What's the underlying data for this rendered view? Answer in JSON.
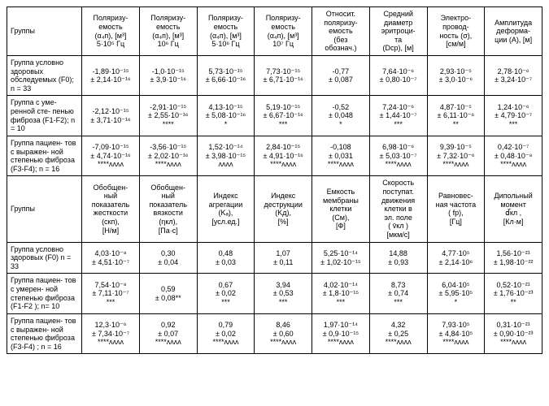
{
  "tableA": {
    "header_row_label": "Группы",
    "headers": [
      "Поляризу-\nемость\n(α₄п), [м³]\n5·10⁵ Гц",
      "Поляризу-\nемость\n(α₄п), [м³]\n10⁶ Гц",
      "Поляризу-\nемость\n(α₄п), [м³]\n5·10⁶ Гц",
      "Поляризу-\nемость\n(α₄п), [м³]\n10⁷ Гц",
      "Относит.\nполяризу-\nемость\n(без\nобознач.)",
      "Средний\nдиаметр\nэритроци-\nта\n(Dср), [м]",
      "Электро-\nпровод-\nность (σ),\n[см/м]",
      "Амплитуда\nдеформа-\nции (A), [м]"
    ],
    "rows": [
      {
        "label": "Группа условно здоровых обследуемых (F0); n = 33",
        "cells": [
          "-1,89·10⁻¹⁵\n± 2,14·10⁻¹⁶",
          "-1,0·10⁻¹⁵\n± 3,9·10⁻¹⁶",
          "5,73·10⁻¹⁵\n± 6,66·10⁻¹⁶",
          "7,73·10⁻¹⁵\n± 6,71·10⁻¹⁶",
          "-0,77\n± 0,087",
          "7,64·10⁻⁶\n± 0,80·10⁻⁷",
          "2,93·10⁻⁵\n± 3,0·10⁻⁶",
          "2,78·10⁻⁶\n± 3,24·10⁻⁷"
        ]
      },
      {
        "label": "Группа с уме-\nренной сте-\nпенью фиброза (F1-F2); n = 10",
        "cells": [
          "-2,12·10⁻¹⁵\n± 3,71·10⁻¹⁶",
          "-2,91·10⁻¹⁵\n± 2,55·10⁻¹⁶\n****",
          "4,13·10⁻¹⁵\n± 5,08·10⁻¹⁶\n*",
          "5,19·10⁻¹⁵\n± 6,67·10⁻¹⁶\n***",
          "-0,52\n± 0,048\n*",
          "7,24·10⁻⁶\n± 1,44·10⁻⁷\n***",
          "4,87·10⁻⁵\n± 6,11·10⁻⁶\n**",
          "1,24·10⁻⁶\n± 4,79·10⁻⁷\n***"
        ]
      },
      {
        "label": "Группа пациен-\nтов с выражен-\nной степенью фиброза (F3-F4); n = 16",
        "cells": [
          "-7,09·10⁻¹⁵\n± 4,74·10⁻¹⁶\n****ʌʌʌʌ",
          "-3,56·10⁻¹⁵\n± 2,02·10⁻¹⁶\n****ʌʌʌʌ",
          "1,52·10⁻¹⁴\n± 3,98·10⁻¹⁵\nʌʌʌʌ",
          "2,84·10⁻¹⁵\n± 4,91·10⁻¹⁶\n****ʌʌʌʌ",
          "-0,108\n± 0,031\n****ʌʌʌʌ",
          "6,98·10⁻⁶\n± 5,03·10⁻⁷\n****ʌʌʌʌ",
          "9,39·10⁻⁵\n± 7,32·10⁻⁶\n****ʌʌʌʌ",
          "0,42·10⁻⁷\n± 0,48·10⁻⁸\n****ʌʌʌʌ"
        ]
      }
    ]
  },
  "tableB": {
    "header_row_label": "Группы",
    "headers": [
      "Обобщен-\nный\nпоказатель\nжесткости\n(cкп),\n[Н/м]",
      "Обобщен-\nный\nпоказатель\nвязкости\n(ηкл),\n[Па·с]",
      "Индекс\nагрегации\n(Kₐ),\n[усл.ед.]",
      "Индекс\nдеструкции\n(Kд),\n[%]",
      "Емкость\nмембраны\nклетки\n(Cм),\n[Ф]",
      "Скорость\nпоступат.\nдвижения\nклетки в\nэл. поле\n( v̄кл )\n[мкм/с]",
      "Равновес-\nная частота\n( fр),\n[Гц]",
      "Дипольный\nмомент\nd⃗кл ,\n[Кл·м]"
    ],
    "rows": [
      {
        "label": "Группа условно здоровых (F0) n = 33",
        "cells": [
          "4,03·10⁻⁸\n± 4,51·10⁻⁷",
          "0,30\n± 0,04",
          "0,48\n± 0,03",
          "1,07\n± 0,11",
          "5,25·10⁻¹⁴\n± 1,02·10⁻¹⁵",
          "14,88\n± 0,93",
          "4,77·10⁵\n± 2,14·10⁶",
          "1,56·10⁻²¹\n± 1,98·10⁻²²"
        ]
      },
      {
        "label": "Группа пациен-\nтов с умерен-\nной степенью фиброза (F1-F2 ); n= 10",
        "cells": [
          "7,54·10⁻⁸\n± 7,11·10⁻⁷\n***",
          "0,59\n± 0,08**",
          "0,67\n± 0,02\n***",
          "3,94\n± 0,53\n***",
          "4,02·10⁻¹⁴\n± 1,8·10⁻¹⁵\n***",
          "8,73\n± 0,74\n***",
          "6,04·10⁵\n± 5,95·10⁵\n*",
          "0,52·10⁻²¹\n± 1,76·10⁻²³\n**"
        ]
      },
      {
        "label": "Группа пациен-\nтов с выражен-\nной степенью фиброза (F3-F4) ; n = 16",
        "cells": [
          "12,3·10⁻⁶\n± 7,34·10⁻⁷\n****ʌʌʌʌ",
          "0,92\n± 0,07\n****ʌʌʌʌ",
          "0,79\n± 0,02\n****ʌʌʌʌ",
          "8,46\n± 0,60\n****ʌʌʌʌ",
          "1,97·10⁻¹⁴\n± 0,9·10⁻¹⁵\n****ʌʌʌʌ",
          "4,32\n± 0,25\n****ʌʌʌʌ",
          "7,93·10⁵\n± 4,84·10⁵\n****ʌʌʌʌ",
          "0,31·10⁻²¹\n± 0,90·10⁻²³\n****ʌʌʌʌ"
        ]
      }
    ]
  },
  "style": {
    "font_size_pt": 9,
    "text_color": "#000000",
    "border_color": "#000000",
    "background_color": "#ffffff"
  }
}
